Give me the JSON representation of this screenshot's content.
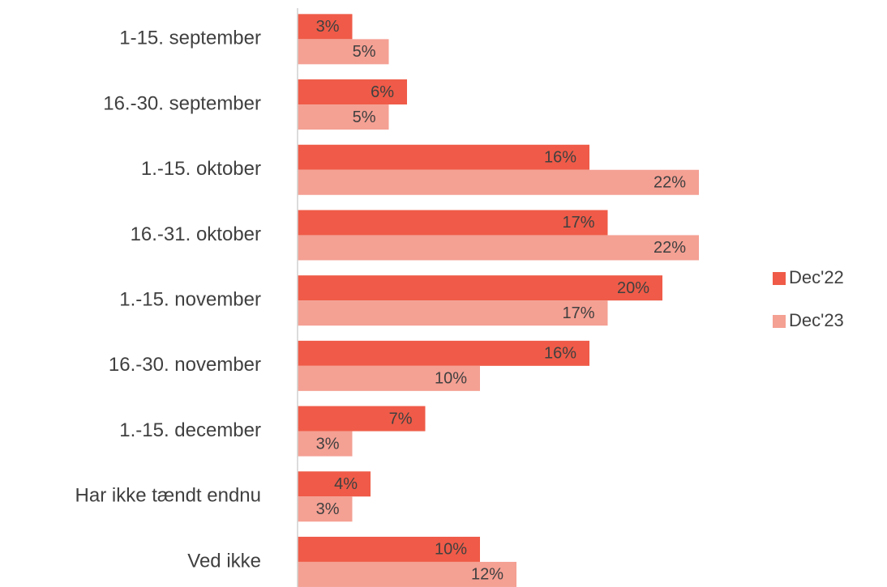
{
  "chart_data": {
    "type": "bar",
    "orientation": "horizontal",
    "categories": [
      "1-15. september",
      "16.-30. september",
      "1.-15. oktober",
      "16.-31. oktober",
      "1.-15. november",
      "16.-30. november",
      "1.-15. december",
      "Har ikke tændt endnu",
      "Ved ikke"
    ],
    "series": [
      {
        "name": "Dec'22",
        "color": "#ef5b48",
        "values": [
          3,
          6,
          16,
          17,
          20,
          16,
          7,
          4,
          10
        ],
        "value_labels": [
          "3%",
          "6%",
          "16%",
          "17%",
          "20%",
          "16%",
          "7%",
          "4%",
          "10%"
        ]
      },
      {
        "name": "Dec'23",
        "color": "#f4a093",
        "values": [
          5,
          5,
          22,
          22,
          17,
          10,
          3,
          3,
          12
        ],
        "value_labels": [
          "5%",
          "5%",
          "22%",
          "22%",
          "17%",
          "10%",
          "3%",
          "3%",
          "12%"
        ]
      }
    ],
    "xlim": [
      0,
      30
    ],
    "legend": "right"
  }
}
